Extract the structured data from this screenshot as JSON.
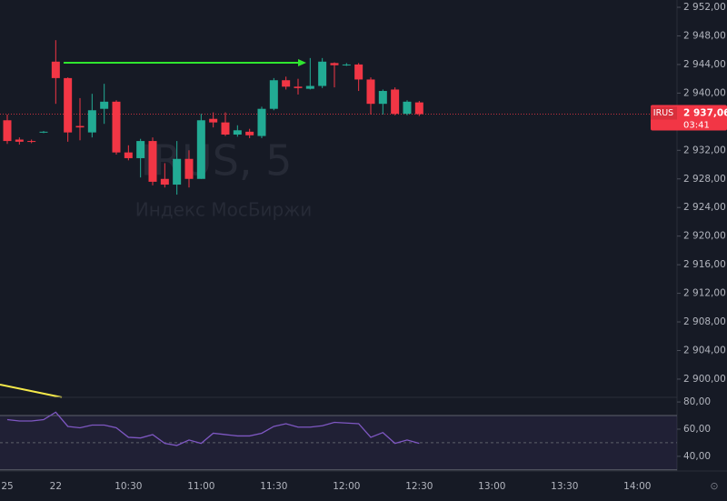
{
  "chart_data": {
    "type": "candlestick",
    "symbol": "IRUS",
    "watermark": "IRUS, 5",
    "watermark_subtitle": "Индекс МосБиржи",
    "categories": [
      "25",
      null,
      null,
      null,
      "22",
      null,
      null,
      null,
      null,
      null,
      "10:30",
      null,
      null,
      null,
      null,
      null,
      "11:00",
      null,
      null,
      null,
      null,
      null,
      "11:30",
      null,
      null,
      null,
      null,
      null,
      "12:00",
      null,
      null,
      null,
      null,
      null,
      "12:30",
      null,
      null,
      null,
      null,
      null,
      "13:00",
      null,
      null,
      null,
      null,
      null,
      "13:30",
      null,
      null,
      null,
      null,
      null,
      "14:00",
      null,
      null,
      null
    ],
    "open": [
      2936.2,
      2933.5,
      2933.3,
      2934.5,
      2944.4,
      2942.1,
      2935.4,
      2934.5,
      2937.8,
      2938.8,
      2931.7,
      2930.9,
      2933.3,
      2928.0,
      2927.2,
      2930.8,
      2928.0,
      2936.4,
      2935.9,
      2934.2,
      2934.6,
      2934.0,
      2937.8,
      2941.8,
      2940.9,
      2940.6,
      2941.0,
      2944.2,
      2943.9,
      2944.0,
      2941.9,
      2938.5,
      2940.5,
      2937.1,
      2938.7,
      null,
      null,
      null,
      null,
      null,
      null,
      null,
      null,
      null,
      null,
      null,
      null,
      null,
      null,
      null,
      null,
      null,
      null,
      null,
      null,
      null
    ],
    "high": [
      2937.0,
      2933.8,
      2933.5,
      2934.7,
      2947.4,
      2942.2,
      2939.3,
      2939.9,
      2941.3,
      2939.0,
      2932.7,
      2933.6,
      2933.8,
      2930.2,
      2933.3,
      2932.0,
      2937.1,
      2937.3,
      2937.3,
      2935.5,
      2935.0,
      2938.1,
      2942.1,
      2942.3,
      2942.0,
      2944.9,
      2944.9,
      2944.3,
      2944.2,
      2944.2,
      2942.2,
      2940.5,
      2940.8,
      2939.0,
      2938.9,
      null,
      null,
      null,
      null,
      null,
      null,
      null,
      null,
      null,
      null,
      null,
      null,
      null,
      null,
      null,
      null,
      null,
      null,
      null,
      null,
      null
    ],
    "low": [
      2932.9,
      2932.8,
      2933.0,
      2934.4,
      2938.5,
      2933.2,
      2933.4,
      2933.8,
      2935.7,
      2931.4,
      2930.6,
      2928.2,
      2927.1,
      2926.8,
      2925.8,
      2926.8,
      2928.0,
      2935.2,
      2934.0,
      2933.9,
      2933.7,
      2933.7,
      2937.6,
      2940.5,
      2939.8,
      2940.5,
      2940.7,
      2940.8,
      2943.8,
      2940.3,
      2937.0,
      2937.0,
      2936.9,
      2936.9,
      2936.8,
      null,
      null,
      null,
      null,
      null,
      null,
      null,
      null,
      null,
      null,
      null,
      null,
      null,
      null,
      null,
      null,
      null,
      null,
      null,
      null,
      null
    ],
    "close": [
      2933.3,
      2933.2,
      2933.2,
      2934.6,
      2942.1,
      2934.5,
      2935.2,
      2937.6,
      2938.8,
      2931.7,
      2930.9,
      2933.3,
      2927.6,
      2927.2,
      2930.8,
      2928.0,
      2936.2,
      2935.9,
      2934.2,
      2934.8,
      2934.1,
      2937.8,
      2941.8,
      2940.9,
      2940.7,
      2941.0,
      2944.4,
      2943.9,
      2944.0,
      2941.9,
      2938.5,
      2940.3,
      2937.1,
      2938.8,
      2937.06,
      null,
      null,
      null,
      null,
      null,
      null,
      null,
      null,
      null,
      null,
      null,
      null,
      null,
      null,
      null,
      null,
      null,
      null,
      null,
      null,
      null
    ],
    "up_color": "#22ab94",
    "down_color": "#f23645",
    "ylim": [
      2897.45,
      2953.02
    ],
    "yticks": [
      {
        "value": 2900,
        "label": "2 900,00"
      },
      {
        "value": 2904,
        "label": "2 904,00"
      },
      {
        "value": 2908,
        "label": "2 908,00"
      },
      {
        "value": 2912,
        "label": "2 912,00"
      },
      {
        "value": 2916,
        "label": "2 916,00"
      },
      {
        "value": 2920,
        "label": "2 920,00"
      },
      {
        "value": 2924,
        "label": "2 924,00"
      },
      {
        "value": 2928,
        "label": "2 928,00"
      },
      {
        "value": 2932,
        "label": "2 932,00"
      },
      {
        "value": 2936,
        "label": "2 936,00"
      },
      {
        "value": 2940,
        "label": "2 940,00"
      },
      {
        "value": 2944,
        "label": "2 944,00"
      },
      {
        "value": 2948,
        "label": "2 948,00"
      },
      {
        "value": 2952,
        "label": "2 952,00"
      }
    ],
    "last_price": {
      "value": 2937.06,
      "label": "2 937,06"
    },
    "countdown": "03:41",
    "indicator": {
      "type": "line",
      "color": "#7e57c2",
      "values": [
        67,
        66,
        66,
        67,
        72.5,
        62,
        61,
        63,
        63,
        61,
        54,
        53.5,
        56,
        49.5,
        48,
        52,
        49.5,
        57,
        56,
        55,
        55,
        57,
        62,
        64,
        61.5,
        61.5,
        62.5,
        65,
        64.5,
        64,
        54,
        57.5,
        49.5,
        52,
        49.5,
        null,
        null,
        null,
        null,
        null,
        null,
        null,
        null,
        null,
        null,
        null,
        null,
        null,
        null,
        null,
        null,
        null,
        null,
        null,
        null,
        null
      ],
      "ylim": [
        29.2,
        83.4
      ],
      "yticks": [
        {
          "value": 40,
          "label": "40,00"
        },
        {
          "value": 60,
          "label": "60,00"
        },
        {
          "value": 80,
          "label": "80,00"
        }
      ],
      "levels": [
        70,
        50,
        30
      ]
    }
  }
}
